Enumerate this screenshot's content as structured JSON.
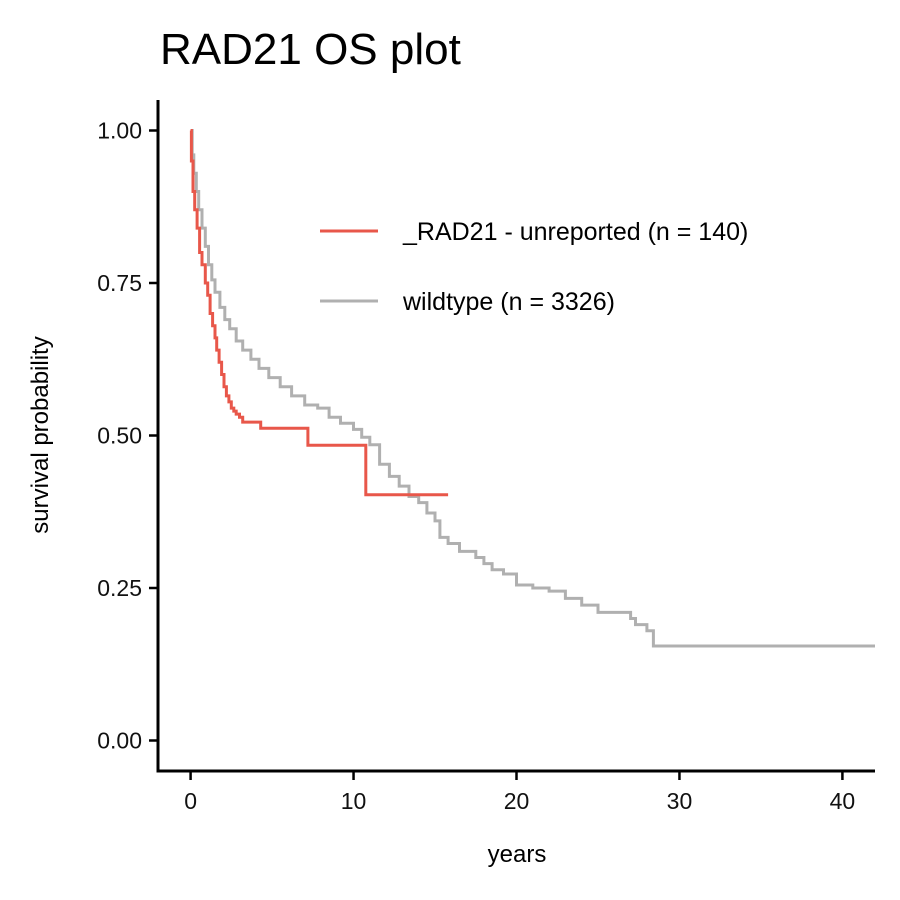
{
  "chart_data": {
    "type": "line",
    "title": "RAD21 OS plot",
    "xlabel": "years",
    "ylabel": "survival probability",
    "xlim": [
      -2,
      42
    ],
    "ylim": [
      -0.05,
      1.05
    ],
    "xticks": [
      0,
      10,
      20,
      30,
      40
    ],
    "xtick_labels": [
      "0",
      "10",
      "20",
      "30",
      "40"
    ],
    "yticks": [
      0,
      0.25,
      0.5,
      0.75,
      1.0
    ],
    "ytick_labels": [
      "0.00",
      "0.25",
      "0.50",
      "0.75",
      "1.00"
    ],
    "grid": false,
    "legend_position": "top-right",
    "step": true,
    "series": [
      {
        "name": "_RAD21 - unreported (n = 140)",
        "color": "#E8574A",
        "x": [
          0,
          0.05,
          0.15,
          0.25,
          0.4,
          0.55,
          0.7,
          0.9,
          1.05,
          1.2,
          1.35,
          1.5,
          1.6,
          1.75,
          1.9,
          2.05,
          2.2,
          2.35,
          2.5,
          2.65,
          2.8,
          3.0,
          3.2,
          3.45,
          4.3,
          7.2,
          10.75,
          15.8
        ],
        "y": [
          1.0,
          0.95,
          0.9,
          0.87,
          0.84,
          0.8,
          0.78,
          0.75,
          0.73,
          0.7,
          0.68,
          0.66,
          0.64,
          0.62,
          0.6,
          0.58,
          0.565,
          0.555,
          0.545,
          0.54,
          0.535,
          0.53,
          0.522,
          0.522,
          0.512,
          0.484,
          0.403,
          0.403
        ]
      },
      {
        "name": "wildtype (n = 3326)",
        "color": "#B0B0B0",
        "x": [
          0,
          0.1,
          0.2,
          0.35,
          0.5,
          0.7,
          0.9,
          1.1,
          1.3,
          1.5,
          1.8,
          2.1,
          2.4,
          2.8,
          3.2,
          3.7,
          4.2,
          4.8,
          5.5,
          6.2,
          7.0,
          7.8,
          8.5,
          9.2,
          10.0,
          10.5,
          11.0,
          11.6,
          12.2,
          12.8,
          13.4,
          14.0,
          14.5,
          15.0,
          15.3,
          15.8,
          16.5,
          17.5,
          18.0,
          18.5,
          19.2,
          20.0,
          21.0,
          22.0,
          23.0,
          24.0,
          25.0,
          26.0,
          27.0,
          27.3,
          28.0,
          28.4,
          29.0,
          35.0,
          42.0
        ],
        "y": [
          1.0,
          0.96,
          0.93,
          0.9,
          0.87,
          0.84,
          0.81,
          0.78,
          0.755,
          0.735,
          0.71,
          0.69,
          0.675,
          0.655,
          0.64,
          0.625,
          0.61,
          0.595,
          0.58,
          0.565,
          0.55,
          0.545,
          0.53,
          0.52,
          0.51,
          0.497,
          0.485,
          0.453,
          0.433,
          0.417,
          0.4,
          0.39,
          0.373,
          0.36,
          0.333,
          0.323,
          0.31,
          0.3,
          0.29,
          0.28,
          0.273,
          0.255,
          0.25,
          0.245,
          0.233,
          0.222,
          0.21,
          0.21,
          0.2,
          0.19,
          0.18,
          0.155,
          0.155,
          0.155,
          0.155
        ]
      }
    ]
  }
}
